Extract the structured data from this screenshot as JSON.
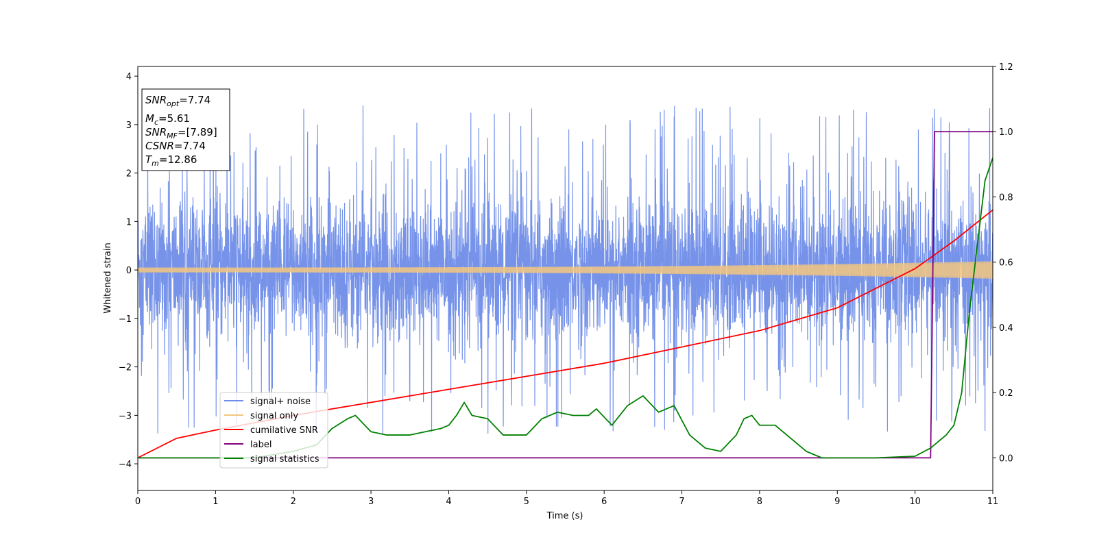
{
  "chart_data": {
    "type": "line",
    "xlabel": "Time (s)",
    "ylabel": "Whitened strain",
    "xlim": [
      0,
      11
    ],
    "ylim": [
      -4.55,
      4.2
    ],
    "y2lim": [
      -0.1,
      1.2
    ],
    "x_ticks": [
      "0",
      "1",
      "2",
      "3",
      "4",
      "5",
      "6",
      "7",
      "8",
      "9",
      "10",
      "11"
    ],
    "y_ticks": [
      "−4",
      "−3",
      "−2",
      "−1",
      "0",
      "1",
      "2",
      "3",
      "4"
    ],
    "y2_ticks": [
      "0.0",
      "0.2",
      "0.4",
      "0.6",
      "0.8",
      "1.0",
      "1.2"
    ],
    "grid": false,
    "legend_position": "lower-left",
    "info_box": {
      "snr_opt_base": "SNR",
      "snr_opt_sub": "opt",
      "snr_opt_value": "=7.74",
      "mc_base": "M",
      "mc_sub": "c",
      "mc_value": "=5.61",
      "snr_mf_base": "SNR",
      "snr_mf_sub": "MF",
      "snr_mf_value": "=[7.89]",
      "csnr_label": "CSNR",
      "csnr_value": "=7.74",
      "tm_base": "T",
      "tm_sub": "m",
      "tm_value": "=12.86"
    },
    "series": [
      {
        "name": "signal+ noise",
        "color": "#6f8de8",
        "axis": "left",
        "description_values": "noise band between approx -2 and 2, spikes to approx 3.8 and -4.2"
      },
      {
        "name": "signal only",
        "color": "#f5c77e",
        "axis": "left",
        "envelope_start": 0.05,
        "envelope_end": 0.18
      },
      {
        "name": "cumilative SNR",
        "color": "#ff0000",
        "axis": "right",
        "x": [
          0,
          0.5,
          1,
          2,
          3,
          4,
          5,
          6,
          7,
          8,
          9,
          10,
          10.5,
          11
        ],
        "y": [
          0.0,
          0.06,
          0.085,
          0.13,
          0.17,
          0.21,
          0.25,
          0.29,
          0.34,
          0.39,
          0.46,
          0.58,
          0.665,
          0.76
        ]
      },
      {
        "name": "label",
        "color": "#800080",
        "axis": "right",
        "x": [
          0,
          10.2,
          10.25,
          11
        ],
        "y": [
          0,
          0,
          1,
          1
        ]
      },
      {
        "name": "signal statistics",
        "color": "#008000",
        "axis": "right",
        "x": [
          0,
          1.5,
          2.0,
          2.3,
          2.5,
          2.7,
          2.8,
          3.0,
          3.2,
          3.5,
          3.7,
          3.9,
          4.0,
          4.1,
          4.2,
          4.3,
          4.5,
          4.7,
          5.0,
          5.2,
          5.4,
          5.6,
          5.8,
          5.9,
          6.1,
          6.3,
          6.5,
          6.7,
          6.9,
          7.1,
          7.3,
          7.5,
          7.7,
          7.8,
          7.9,
          8.0,
          8.2,
          8.4,
          8.6,
          8.8,
          9.0,
          9.5,
          10.0,
          10.2,
          10.4,
          10.5,
          10.6,
          10.7,
          10.8,
          10.9,
          11.0
        ],
        "y": [
          0.0,
          0.0,
          0.02,
          0.04,
          0.09,
          0.12,
          0.13,
          0.08,
          0.07,
          0.07,
          0.08,
          0.09,
          0.1,
          0.13,
          0.17,
          0.13,
          0.12,
          0.07,
          0.07,
          0.12,
          0.14,
          0.13,
          0.13,
          0.15,
          0.1,
          0.16,
          0.19,
          0.14,
          0.16,
          0.07,
          0.03,
          0.02,
          0.07,
          0.12,
          0.13,
          0.1,
          0.1,
          0.06,
          0.02,
          0.0,
          0.0,
          0.0,
          0.005,
          0.03,
          0.07,
          0.1,
          0.2,
          0.45,
          0.65,
          0.85,
          0.92
        ]
      }
    ]
  }
}
